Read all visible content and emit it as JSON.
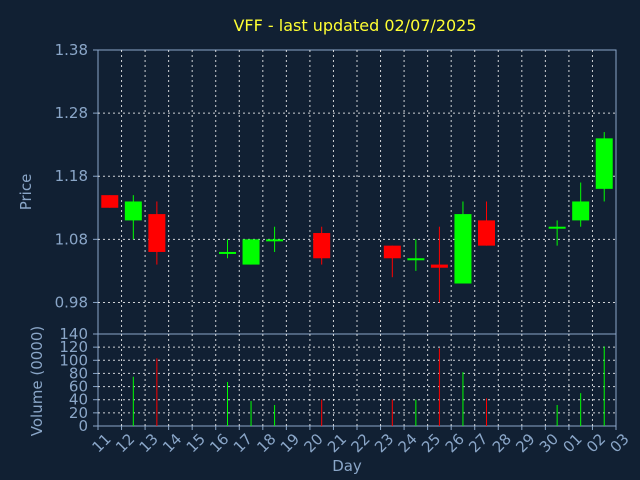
{
  "chart_data": {
    "type": "candlestick",
    "title": "VFF - last updated 02/07/2025",
    "xlabel": "Day",
    "price_panel": {
      "ylabel": "Price",
      "ylim": [
        0.93,
        1.38
      ],
      "yticks": [
        "1.38",
        "1.28",
        "1.18",
        "1.08",
        "0.98"
      ],
      "ytick_values": [
        1.38,
        1.28,
        1.18,
        1.08,
        0.98
      ],
      "grid": true
    },
    "volume_panel": {
      "ylabel": "Volume (0000)",
      "ylim": [
        0,
        140
      ],
      "yticks": [
        "140",
        "120",
        "100",
        "80",
        "60",
        "40",
        "20",
        "0"
      ],
      "ytick_values": [
        140,
        120,
        100,
        80,
        60,
        40,
        20,
        0
      ],
      "grid": true
    },
    "categories": [
      "11",
      "12",
      "13",
      "14",
      "15",
      "16",
      "17",
      "18",
      "19",
      "20",
      "21",
      "22",
      "23",
      "24",
      "25",
      "26",
      "27",
      "28",
      "29",
      "30",
      "01",
      "02",
      "03"
    ],
    "candles": [
      {
        "day": "11",
        "open": 1.15,
        "high": 1.15,
        "low": 1.13,
        "close": 1.13,
        "volume": null
      },
      {
        "day": "12",
        "open": 1.11,
        "high": 1.15,
        "low": 1.08,
        "close": 1.14,
        "volume": 75
      },
      {
        "day": "13",
        "open": 1.12,
        "high": 1.14,
        "low": 1.04,
        "close": 1.06,
        "volume": 103
      },
      {
        "day": "16",
        "open": 1.06,
        "high": 1.08,
        "low": 1.05,
        "close": 1.06,
        "volume": 67
      },
      {
        "day": "17",
        "open": 1.04,
        "high": 1.08,
        "low": 1.04,
        "close": 1.08,
        "volume": 38
      },
      {
        "day": "18",
        "open": 1.08,
        "high": 1.1,
        "low": 1.06,
        "close": 1.08,
        "volume": 32
      },
      {
        "day": "20",
        "open": 1.09,
        "high": 1.1,
        "low": 1.04,
        "close": 1.05,
        "volume": 40
      },
      {
        "day": "23",
        "open": 1.07,
        "high": 1.07,
        "low": 1.02,
        "close": 1.05,
        "volume": 40
      },
      {
        "day": "24",
        "open": 1.05,
        "high": 1.08,
        "low": 1.03,
        "close": 1.05,
        "volume": 40
      },
      {
        "day": "25",
        "open": 1.04,
        "high": 1.1,
        "low": 0.98,
        "close": 1.035,
        "volume": 118
      },
      {
        "day": "26",
        "open": 1.01,
        "high": 1.14,
        "low": 1.01,
        "close": 1.12,
        "volume": 82
      },
      {
        "day": "27",
        "open": 1.11,
        "high": 1.14,
        "low": 1.07,
        "close": 1.07,
        "volume": 42
      },
      {
        "day": "30",
        "open": 1.1,
        "high": 1.11,
        "low": 1.07,
        "close": 1.1,
        "volume": 32
      },
      {
        "day": "01",
        "open": 1.11,
        "high": 1.17,
        "low": 1.1,
        "close": 1.14,
        "volume": 50
      },
      {
        "day": "02",
        "open": 1.16,
        "high": 1.25,
        "low": 1.14,
        "close": 1.24,
        "volume": 121
      }
    ],
    "colors": {
      "background": "#112033",
      "grid": "#ffffff",
      "axes": "#8aa6c8",
      "up": "#00ff00",
      "down": "#ff0000",
      "title": "#ffff33"
    }
  }
}
